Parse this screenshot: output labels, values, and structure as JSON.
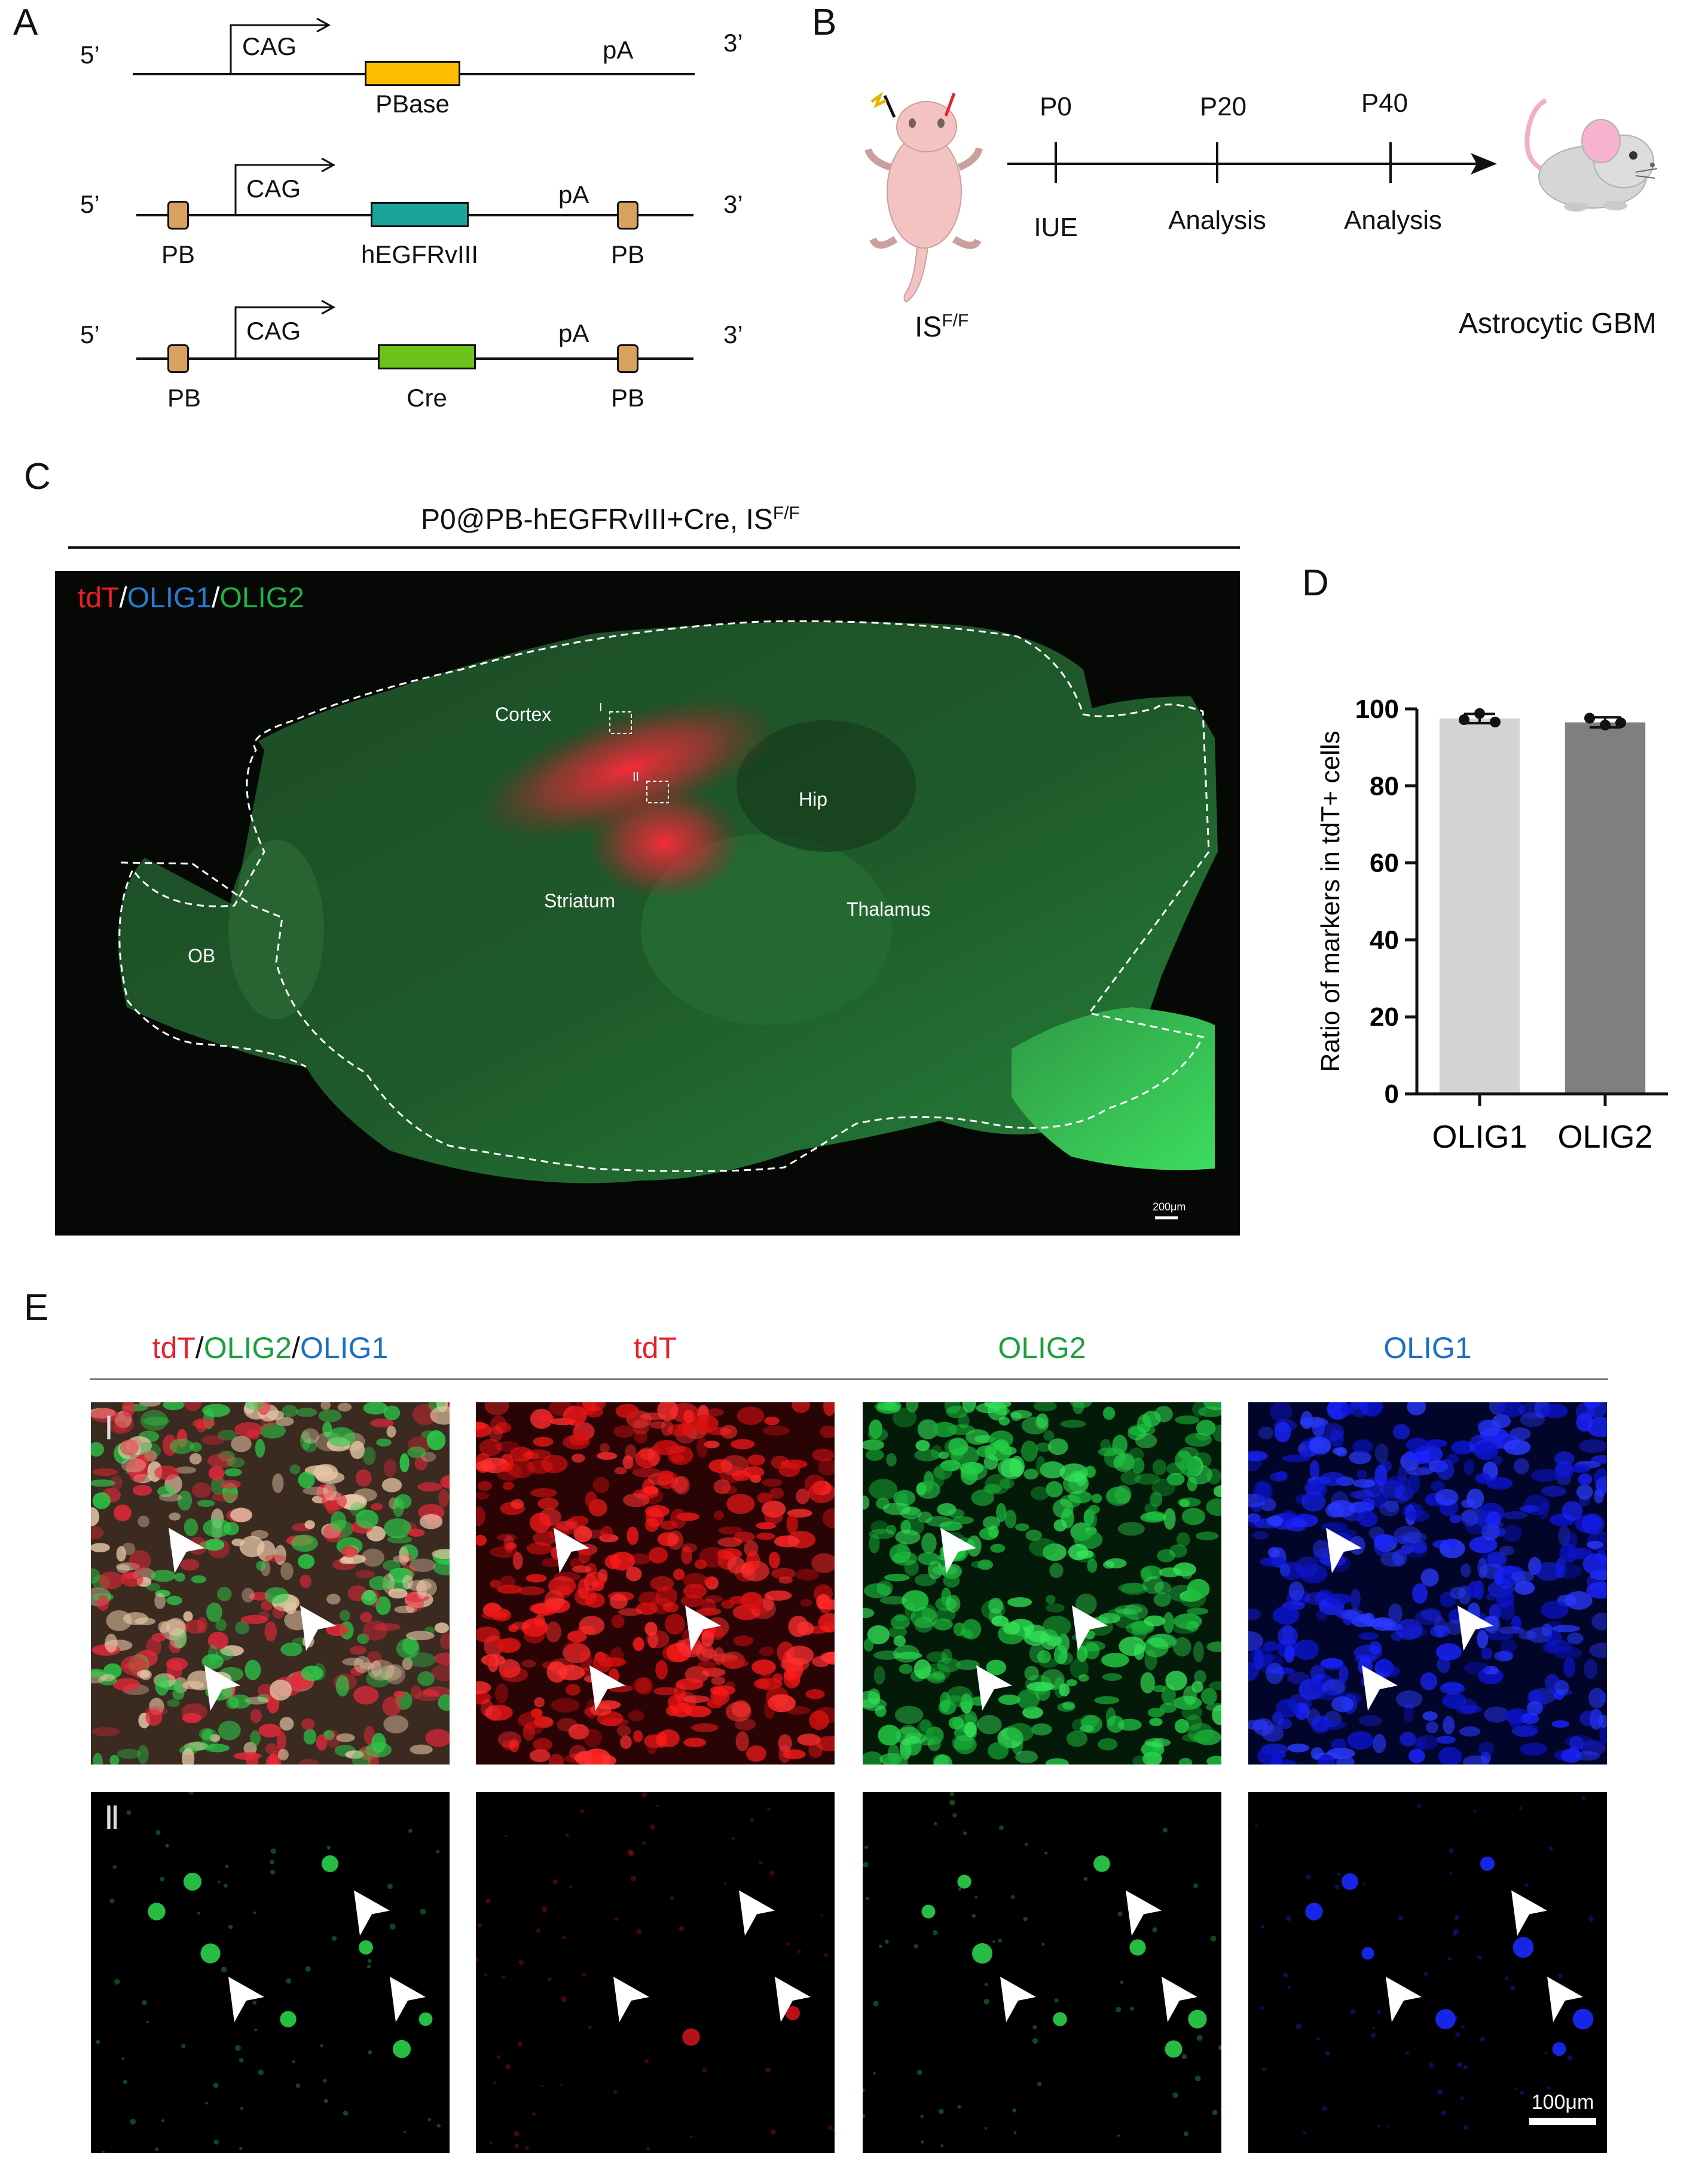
{
  "panels": {
    "a": "A",
    "b": "B",
    "c": "C",
    "d": "D",
    "e": "E"
  },
  "panel_a": {
    "constructs": [
      {
        "five_prime": "5’",
        "three_prime": "3’",
        "promoter": "CAG",
        "gene": "PBase",
        "polya": "pA",
        "pb_left": "",
        "pb_right": "",
        "gene_color": "#ffbf00"
      },
      {
        "five_prime": "5’",
        "three_prime": "3’",
        "promoter": "CAG",
        "gene": "hEGFRvIII",
        "polya": "pA",
        "pb_left": "PB",
        "pb_right": "PB",
        "gene_color": "#1aa59c"
      },
      {
        "five_prime": "5’",
        "three_prime": "3’",
        "promoter": "CAG",
        "gene": "Cre",
        "polya": "pA",
        "pb_left": "PB",
        "pb_right": "PB",
        "gene_color": "#6cc31a"
      }
    ],
    "pb_color": "#d9a15f"
  },
  "panel_b": {
    "timepoints": [
      {
        "top": "P0",
        "bottom": "IUE"
      },
      {
        "top": "P20",
        "bottom": "Analysis"
      },
      {
        "top": "P40",
        "bottom": "Analysis"
      }
    ],
    "genotype_base": "IS",
    "genotype_sup": "F/F",
    "outcome": "Astrocytic GBM"
  },
  "panel_c": {
    "title_base": "P0@PB-hEGFRvIII+Cre, IS",
    "title_sup": "F/F",
    "stain": {
      "tdt": "tdT",
      "olig1": "OLIG1",
      "olig2": "OLIG2",
      "sep": "/"
    },
    "regions": [
      "Cortex",
      "Hip",
      "Striatum",
      "Thalamus",
      "OB"
    ],
    "boxes": [
      "I",
      "II"
    ],
    "scale": "200μm"
  },
  "chart_data": {
    "type": "bar",
    "categories": [
      "OLIG1",
      "OLIG2"
    ],
    "values": [
      97.5,
      96.5
    ],
    "errors": [
      1.2,
      1.3
    ],
    "points": [
      [
        97.2,
        98.8,
        96.6
      ],
      [
        97.6,
        95.8,
        96.4
      ]
    ],
    "colors": [
      "#d4d4d4",
      "#7f7f7f"
    ],
    "title": "",
    "xlabel": "",
    "ylabel": "Ratio of markers in tdT+ cells",
    "ylim": [
      0,
      100
    ],
    "yticks": [
      "0",
      "20",
      "40",
      "60",
      "80",
      "100"
    ]
  },
  "panel_e": {
    "headers": [
      {
        "parts": [
          "tdT",
          "/",
          "OLIG2",
          "/",
          "OLIG1"
        ]
      },
      {
        "parts": [
          "tdT"
        ]
      },
      {
        "parts": [
          "OLIG2"
        ]
      },
      {
        "parts": [
          "OLIG1"
        ]
      }
    ],
    "rows": [
      "Ⅰ",
      "Ⅱ"
    ],
    "scale": "100μm",
    "colors": {
      "red": "#e8202a",
      "green": "#1aa03c",
      "blue": "#1a6fc4"
    }
  }
}
